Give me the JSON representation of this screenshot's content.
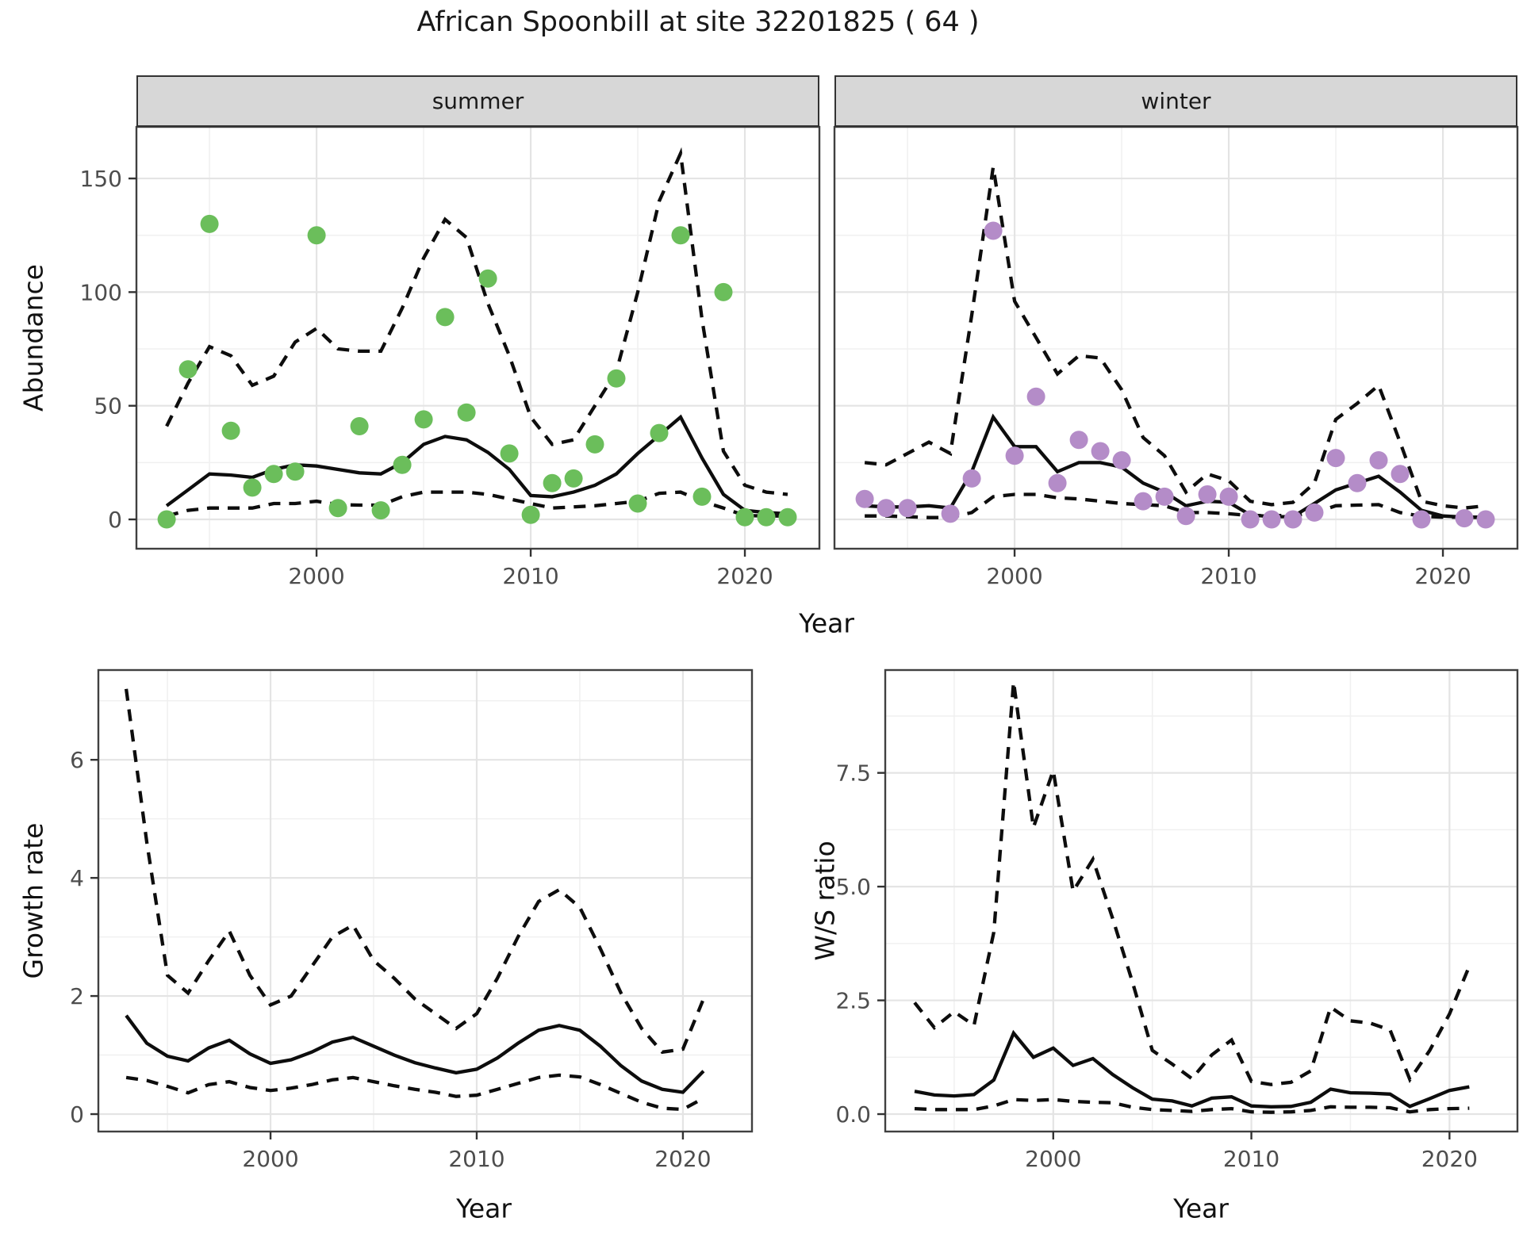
{
  "title": "African Spoonbill at site 32201825 ( 64 )",
  "colors": {
    "summer_points": "#6bbe5b",
    "winter_points": "#b48cc8",
    "line": "#0d0d0d",
    "strip_background": "#d7d7d7",
    "panel_border": "#404040",
    "grid_major": "#e4e4e4",
    "grid_minor": "#f0f0f0",
    "tick_text": "#4d4d4d"
  },
  "chart_data": [
    {
      "id": "abundance_summer",
      "type": "line+scatter",
      "facet_label": "summer",
      "xlabel": "Year",
      "ylabel": "Abundance",
      "show_y_labels": true,
      "x": [
        1993,
        1994,
        1995,
        1996,
        1997,
        1998,
        1999,
        2000,
        2001,
        2002,
        2003,
        2004,
        2005,
        2006,
        2007,
        2008,
        2009,
        2010,
        2011,
        2012,
        2013,
        2014,
        2015,
        2016,
        2017,
        2018,
        2019,
        2020,
        2021,
        2022
      ],
      "series": [
        {
          "name": "observed",
          "type": "scatter",
          "color": "#6bbe5b",
          "values": [
            0,
            66,
            130,
            39,
            14,
            20,
            21,
            125,
            5,
            41,
            4,
            24,
            44,
            89,
            47,
            106,
            29,
            2,
            16,
            18,
            33,
            62,
            7,
            38,
            125,
            10,
            100,
            1,
            1,
            1
          ]
        },
        {
          "name": "fit",
          "type": "line",
          "style": "solid",
          "values": [
            6,
            13,
            20,
            19.5,
            18.5,
            22,
            24,
            23.5,
            22,
            20.5,
            20,
            25,
            33,
            36.5,
            35,
            29.5,
            22,
            10.5,
            10,
            12,
            15,
            20,
            29,
            37,
            45,
            27,
            11,
            4,
            3,
            2.5
          ]
        },
        {
          "name": "upper_ci",
          "type": "line",
          "style": "dashed",
          "values": [
            41,
            60,
            76,
            72,
            59,
            63,
            78,
            84,
            75,
            74,
            74,
            93,
            115,
            132,
            124,
            95,
            72,
            45,
            33,
            35,
            50,
            65,
            100,
            140,
            161,
            88,
            30,
            15,
            12,
            11
          ]
        },
        {
          "name": "lower_ci",
          "type": "line",
          "style": "dashed",
          "values": [
            1.5,
            4,
            5,
            5,
            5,
            7,
            7,
            8,
            6.5,
            6.3,
            6.3,
            10,
            12,
            12,
            12,
            11,
            9,
            7,
            5,
            5.5,
            6,
            7,
            8,
            11.5,
            12,
            8,
            5,
            1.7,
            1.5,
            1.5
          ]
        }
      ],
      "x_ticks": [
        {
          "v": 2000,
          "label": "2000"
        },
        {
          "v": 2010,
          "label": "2010"
        },
        {
          "v": 2020,
          "label": "2020"
        }
      ],
      "x_minor": [
        1995,
        2005,
        2015
      ],
      "y_ticks": [
        {
          "v": 0,
          "label": "0"
        },
        {
          "v": 50,
          "label": "50"
        },
        {
          "v": 100,
          "label": "100"
        },
        {
          "v": 150,
          "label": "150"
        }
      ],
      "y_minor": [
        25,
        75,
        125
      ]
    },
    {
      "id": "abundance_winter",
      "type": "line+scatter",
      "facet_label": "winter",
      "xlabel": "Year",
      "ylabel": "Abundance",
      "show_y_labels": false,
      "x": [
        1993,
        1994,
        1995,
        1996,
        1997,
        1998,
        1999,
        2000,
        2001,
        2002,
        2003,
        2004,
        2005,
        2006,
        2007,
        2008,
        2009,
        2010,
        2011,
        2012,
        2013,
        2014,
        2015,
        2016,
        2017,
        2018,
        2019,
        2020,
        2021,
        2022
      ],
      "series": [
        {
          "name": "observed",
          "type": "scatter",
          "color": "#b48cc8",
          "values": [
            9,
            5,
            5,
            null,
            2.5,
            18,
            127,
            28,
            54,
            16,
            35,
            30,
            26,
            8,
            10,
            1.5,
            11,
            10,
            0,
            0,
            0,
            3,
            27,
            16,
            26,
            20,
            0,
            null,
            0.5,
            0
          ]
        },
        {
          "name": "fit",
          "type": "line",
          "style": "solid",
          "values": [
            6,
            5.5,
            5.5,
            6,
            5,
            21,
            45,
            32,
            32,
            21,
            25,
            25,
            23,
            16,
            12,
            6,
            8,
            7.5,
            2,
            1.2,
            1.2,
            7,
            13,
            16,
            19,
            12,
            4,
            1.5,
            1,
            0.8
          ]
        },
        {
          "name": "upper_ci",
          "type": "line",
          "style": "dashed",
          "values": [
            25,
            24,
            29,
            34,
            29,
            90,
            155,
            96,
            80,
            64,
            72,
            71,
            57,
            36,
            28,
            12,
            20,
            17,
            8,
            6.5,
            7.5,
            16,
            44,
            51,
            59,
            34,
            8,
            6,
            5,
            6
          ]
        },
        {
          "name": "lower_ci",
          "type": "line",
          "style": "dashed",
          "values": [
            1.5,
            1.5,
            1.2,
            0.8,
            0.8,
            3,
            10,
            11,
            11,
            9.5,
            9,
            8,
            7,
            6.5,
            6,
            3,
            3,
            2.5,
            1.7,
            1.7,
            1.7,
            2.8,
            6,
            6.3,
            6.5,
            3,
            1.4,
            1,
            1,
            1
          ]
        }
      ],
      "x_ticks": [
        {
          "v": 2000,
          "label": "2000"
        },
        {
          "v": 2010,
          "label": "2010"
        },
        {
          "v": 2020,
          "label": "2020"
        }
      ],
      "x_minor": [
        1995,
        2005,
        2015
      ],
      "y_ticks": [
        {
          "v": 0,
          "label": "0"
        },
        {
          "v": 50,
          "label": "50"
        },
        {
          "v": 100,
          "label": "100"
        },
        {
          "v": 150,
          "label": "150"
        }
      ],
      "y_minor": [
        25,
        75,
        125
      ]
    },
    {
      "id": "growth_rate",
      "type": "line",
      "facet_label": "",
      "xlabel": "Year",
      "ylabel": "Growth rate",
      "show_y_labels": true,
      "x": [
        1993,
        1994,
        1995,
        1996,
        1997,
        1998,
        1999,
        2000,
        2001,
        2002,
        2003,
        2004,
        2005,
        2006,
        2007,
        2008,
        2009,
        2010,
        2011,
        2012,
        2013,
        2014,
        2015,
        2016,
        2017,
        2018,
        2019,
        2020,
        2021
      ],
      "series": [
        {
          "name": "fit",
          "type": "line",
          "style": "solid",
          "values": [
            1.67,
            1.2,
            0.98,
            0.9,
            1.12,
            1.25,
            1.02,
            0.86,
            0.92,
            1.05,
            1.22,
            1.3,
            1.15,
            1.0,
            0.87,
            0.78,
            0.7,
            0.76,
            0.95,
            1.2,
            1.42,
            1.5,
            1.42,
            1.15,
            0.82,
            0.56,
            0.42,
            0.37,
            0.73
          ]
        },
        {
          "name": "upper_ci",
          "type": "line",
          "style": "dashed",
          "values": [
            7.2,
            4.6,
            2.35,
            2.05,
            2.6,
            3.1,
            2.35,
            1.85,
            2.0,
            2.5,
            3.0,
            3.2,
            2.6,
            2.3,
            1.95,
            1.7,
            1.45,
            1.7,
            2.3,
            3.0,
            3.6,
            3.8,
            3.5,
            2.8,
            2.05,
            1.45,
            1.05,
            1.1,
            1.95
          ]
        },
        {
          "name": "lower_ci",
          "type": "line",
          "style": "dashed",
          "values": [
            0.62,
            0.57,
            0.47,
            0.36,
            0.5,
            0.55,
            0.45,
            0.4,
            0.44,
            0.5,
            0.58,
            0.62,
            0.55,
            0.48,
            0.42,
            0.37,
            0.3,
            0.32,
            0.42,
            0.52,
            0.62,
            0.66,
            0.63,
            0.5,
            0.35,
            0.2,
            0.1,
            0.08,
            0.27
          ]
        }
      ],
      "x_ticks": [
        {
          "v": 2000,
          "label": "2000"
        },
        {
          "v": 2010,
          "label": "2010"
        },
        {
          "v": 2020,
          "label": "2020"
        }
      ],
      "x_minor": [
        1995,
        2005,
        2015
      ],
      "y_ticks": [
        {
          "v": 0,
          "label": "0"
        },
        {
          "v": 2,
          "label": "2"
        },
        {
          "v": 4,
          "label": "4"
        },
        {
          "v": 6,
          "label": "6"
        }
      ],
      "y_minor": [
        1,
        3,
        5,
        7
      ]
    },
    {
      "id": "ws_ratio",
      "type": "line",
      "facet_label": "",
      "xlabel": "Year",
      "ylabel": "W/S ratio",
      "show_y_labels": true,
      "x": [
        1993,
        1994,
        1995,
        1996,
        1997,
        1998,
        1999,
        2000,
        2001,
        2002,
        2003,
        2004,
        2005,
        2006,
        2007,
        2008,
        2009,
        2010,
        2011,
        2012,
        2013,
        2014,
        2015,
        2016,
        2017,
        2018,
        2019,
        2020,
        2021
      ],
      "series": [
        {
          "name": "fit",
          "type": "line",
          "style": "solid",
          "values": [
            0.5,
            0.42,
            0.4,
            0.43,
            0.75,
            1.78,
            1.25,
            1.45,
            1.07,
            1.22,
            0.87,
            0.58,
            0.33,
            0.29,
            0.18,
            0.35,
            0.38,
            0.18,
            0.16,
            0.17,
            0.26,
            0.55,
            0.47,
            0.46,
            0.44,
            0.17,
            0.34,
            0.52,
            0.6
          ]
        },
        {
          "name": "upper_ci",
          "type": "line",
          "style": "dashed",
          "values": [
            2.45,
            1.9,
            2.25,
            1.95,
            4.0,
            9.5,
            6.3,
            7.55,
            4.9,
            5.6,
            4.3,
            2.9,
            1.4,
            1.1,
            0.78,
            1.3,
            1.63,
            0.72,
            0.65,
            0.7,
            0.95,
            2.35,
            2.05,
            2.0,
            1.85,
            0.76,
            1.4,
            2.2,
            3.25
          ]
        },
        {
          "name": "lower_ci",
          "type": "line",
          "style": "dashed",
          "values": [
            0.12,
            0.1,
            0.1,
            0.1,
            0.18,
            0.32,
            0.3,
            0.32,
            0.28,
            0.26,
            0.25,
            0.15,
            0.1,
            0.08,
            0.06,
            0.1,
            0.12,
            0.05,
            0.04,
            0.05,
            0.08,
            0.16,
            0.15,
            0.15,
            0.14,
            0.05,
            0.1,
            0.12,
            0.13
          ]
        }
      ],
      "x_ticks": [
        {
          "v": 2000,
          "label": "2000"
        },
        {
          "v": 2010,
          "label": "2010"
        },
        {
          "v": 2020,
          "label": "2020"
        }
      ],
      "x_minor": [
        1995,
        2005,
        2015
      ],
      "y_ticks": [
        {
          "v": 0,
          "label": "0.0"
        },
        {
          "v": 2.5,
          "label": "2.5"
        },
        {
          "v": 5,
          "label": "5.0"
        },
        {
          "v": 7.5,
          "label": "7.5"
        }
      ],
      "y_minor": [
        1.25,
        3.75,
        6.25,
        8.75
      ]
    }
  ]
}
